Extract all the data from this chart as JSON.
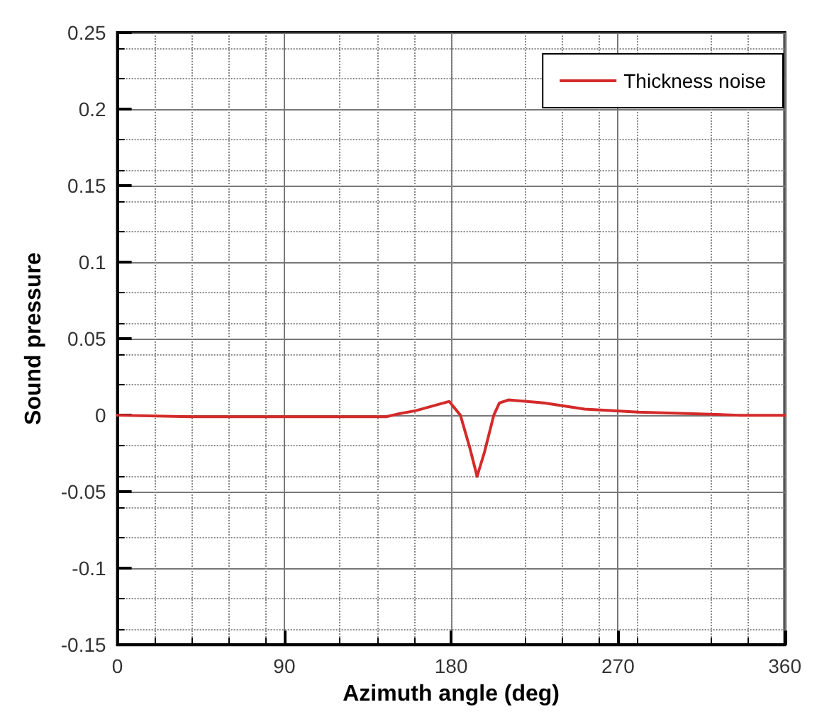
{
  "chart_data": {
    "type": "line",
    "xlabel": "Azimuth angle (deg)",
    "ylabel": "Sound pressure",
    "x": [
      0,
      40,
      80,
      110,
      145,
      152,
      161,
      170,
      179,
      185,
      190,
      194,
      198,
      203,
      206,
      211,
      230,
      252,
      281,
      310,
      335,
      360
    ],
    "series": [
      {
        "name": "Thickness noise",
        "color": "#d42a2a",
        "values": [
          0,
          -0.001,
          -0.001,
          -0.001,
          -0.001,
          0.001,
          0.003,
          0.006,
          0.009,
          0,
          -0.021,
          -0.04,
          -0.024,
          0,
          0.008,
          0.01,
          0.008,
          0.004,
          0.002,
          0.001,
          0,
          0
        ]
      }
    ],
    "xlim": [
      0,
      360
    ],
    "xticks": [
      0,
      90,
      180,
      270,
      360
    ],
    "ylim": [
      -0.15,
      0.25
    ],
    "yticks": [
      -0.15,
      -0.1,
      -0.05,
      0,
      0.05,
      0.1,
      0.15,
      0.2,
      0.25
    ],
    "grid": true,
    "legend": "top right",
    "marker": "none",
    "line_style": "solid"
  }
}
